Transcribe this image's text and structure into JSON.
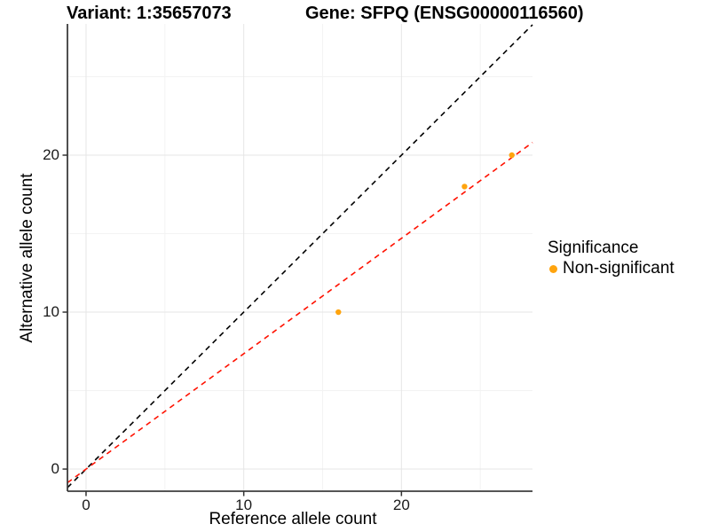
{
  "header": {
    "title_left": "Variant: 1:35657073",
    "title_right": "Gene: SFPQ (ENSG00000116560)"
  },
  "chart_data": {
    "type": "scatter",
    "title": "Variant: 1:35657073  Gene: SFPQ (ENSG00000116560)",
    "xlabel": "Reference allele count",
    "ylabel": "Alternative allele count",
    "xlim": [
      -1.18,
      28.31
    ],
    "ylim": [
      -1.41,
      28.36
    ],
    "x_ticks": [
      "0",
      "10",
      "20"
    ],
    "x_tick_values": [
      0,
      10,
      20
    ],
    "y_ticks": [
      "0",
      "10",
      "20"
    ],
    "y_tick_values": [
      0,
      10,
      20
    ],
    "x_minor_ticks": [
      5,
      15,
      25
    ],
    "y_minor_ticks": [
      5,
      15,
      25
    ],
    "grid": "major+minor",
    "legend_position": "right",
    "series": [
      {
        "name": "Non-significant",
        "color": "#FFA40E",
        "points": [
          {
            "x": 16,
            "y": 10
          },
          {
            "x": 24,
            "y": 18
          },
          {
            "x": 27,
            "y": 20
          }
        ]
      }
    ],
    "lines": [
      {
        "name": "identity-line",
        "color": "#000000",
        "style": "dashed",
        "slope": 1,
        "intercept": 0
      },
      {
        "name": "fit-line",
        "color": "#FF1100",
        "style": "dashed",
        "slope": 0.735,
        "intercept": 0
      }
    ],
    "legend": {
      "title": "Significance",
      "items": [
        {
          "label": "Non-significant",
          "color": "#FFA40E"
        }
      ]
    },
    "colors": {
      "axis_line": "#3d3d3d",
      "tick": "#333333",
      "grid_major": "#e6e6e6",
      "grid_minor": "#f3f3f3",
      "background": "#ffffff"
    }
  }
}
